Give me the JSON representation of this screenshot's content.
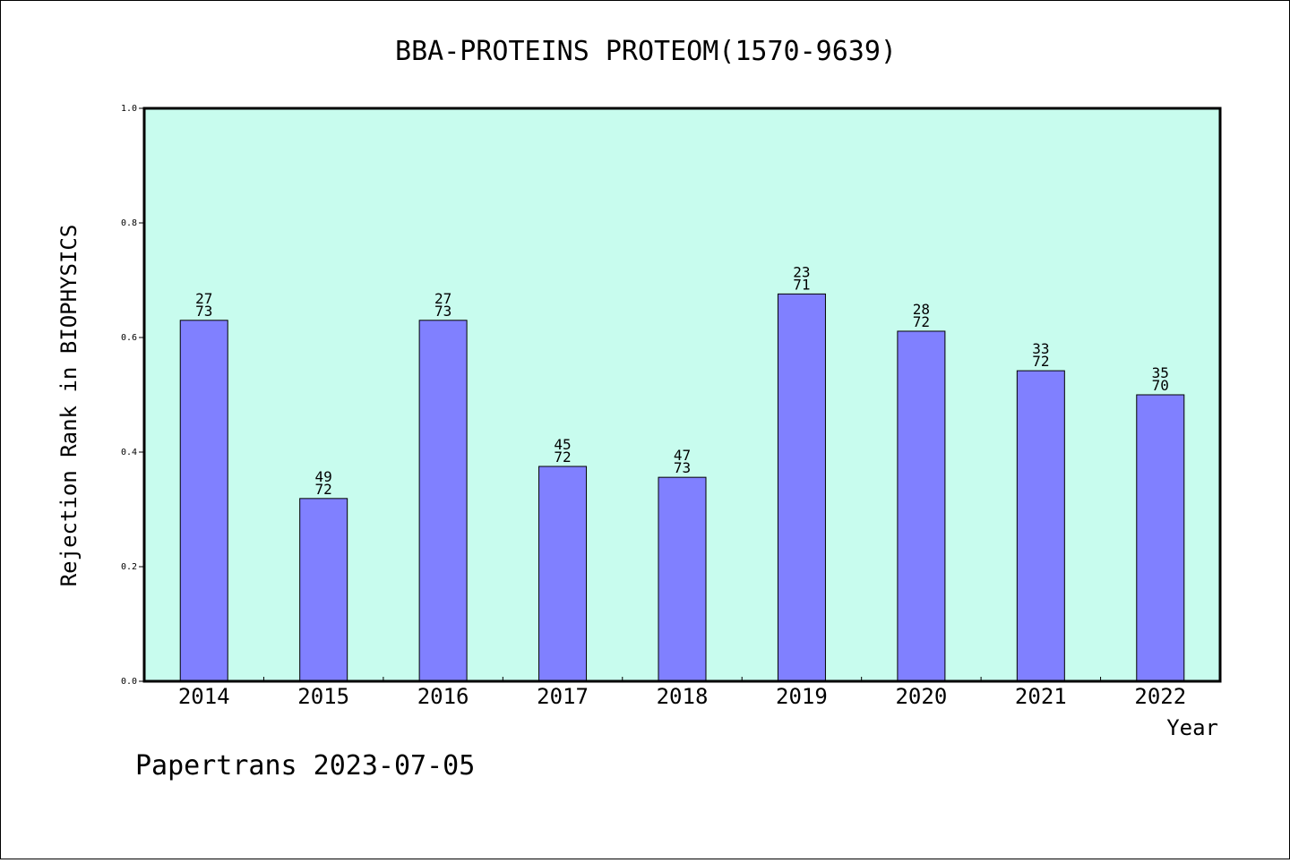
{
  "chart_data": {
    "type": "bar",
    "title": "BBA-PROTEINS PROTEOM(1570-9639)",
    "xlabel": "Year",
    "ylabel": "Rejection Rank in BIOPHYSICS",
    "ylim": [
      0,
      1.0
    ],
    "yticks": [
      "0.0",
      "0.2",
      "0.4",
      "0.6",
      "0.8",
      "1.0"
    ],
    "categories": [
      "2014",
      "2015",
      "2016",
      "2017",
      "2018",
      "2019",
      "2020",
      "2021",
      "2022"
    ],
    "values": [
      0.63,
      0.319,
      0.63,
      0.375,
      0.356,
      0.676,
      0.611,
      0.542,
      0.5
    ],
    "labels_top": [
      "27",
      "49",
      "27",
      "45",
      "47",
      "23",
      "28",
      "33",
      "35"
    ],
    "labels_bottom": [
      "73",
      "72",
      "73",
      "72",
      "73",
      "71",
      "72",
      "72",
      "70"
    ],
    "grid": false,
    "colors": {
      "plot_background": "#c8fcee",
      "bar_fill": "#8080ff",
      "bar_stroke": "#000000"
    }
  },
  "footer": "Papertrans 2023-07-05"
}
